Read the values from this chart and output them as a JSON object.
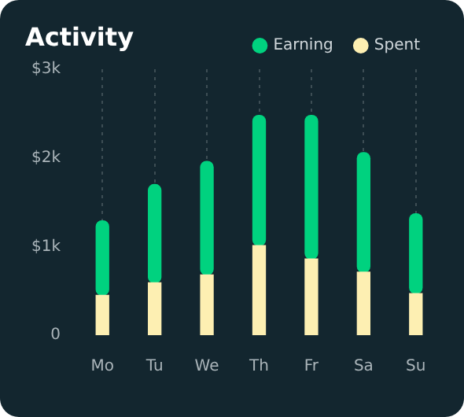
{
  "chart_data": {
    "type": "bar",
    "title": "Activity",
    "stacked": true,
    "categories": [
      "Mo",
      "Tu",
      "We",
      "Th",
      "Fr",
      "Sa",
      "Su"
    ],
    "series": [
      {
        "name": "Spent",
        "color": "#fdefb2",
        "values": [
          450,
          590,
          680,
          1010,
          860,
          710,
          470
        ]
      },
      {
        "name": "Earning",
        "color": "#00d27f",
        "values": [
          840,
          1110,
          1280,
          1470,
          1620,
          1350,
          900
        ]
      }
    ],
    "ylim": [
      0,
      3000
    ],
    "yticks": [
      {
        "value": 0,
        "label": "0"
      },
      {
        "value": 1000,
        "label": "$1k"
      },
      {
        "value": 2000,
        "label": "$2k"
      },
      {
        "value": 3000,
        "label": "$3k"
      }
    ],
    "grid": "x",
    "legend": "top right"
  }
}
